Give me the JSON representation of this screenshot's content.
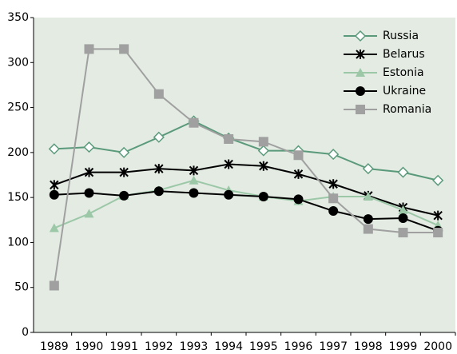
{
  "chart_data": {
    "type": "line",
    "categories": [
      1989,
      1990,
      1991,
      1992,
      1993,
      1994,
      1995,
      1996,
      1997,
      1998,
      1999,
      2000
    ],
    "series": [
      {
        "name": "Russia",
        "color": "#5a9a7a",
        "marker": "diamond",
        "values": [
          204,
          206,
          200,
          217,
          235,
          216,
          202,
          202,
          198,
          182,
          178,
          169
        ]
      },
      {
        "name": "Belarus",
        "color": "#000000",
        "marker": "star",
        "values": [
          164,
          178,
          178,
          182,
          180,
          187,
          185,
          176,
          165,
          152,
          139,
          130
        ]
      },
      {
        "name": "Estonia",
        "color": "#9cc8a8",
        "marker": "triangle",
        "values": [
          116,
          132,
          152,
          158,
          169,
          158,
          151,
          146,
          151,
          151,
          136,
          119
        ]
      },
      {
        "name": "Ukraine",
        "color": "#000000",
        "marker": "circle",
        "values": [
          153,
          155,
          152,
          157,
          155,
          153,
          151,
          148,
          135,
          126,
          127,
          113
        ]
      },
      {
        "name": "Romania",
        "color": "#a0a0a0",
        "marker": "square",
        "values": [
          52,
          315,
          315,
          265,
          233,
          215,
          212,
          197,
          149,
          115,
          111,
          111
        ]
      }
    ],
    "ylim": [
      0,
      350
    ],
    "yticks": [
      0,
      50,
      100,
      150,
      200,
      250,
      300,
      350
    ],
    "legend": "top-right",
    "background": "#e3ebe3"
  }
}
